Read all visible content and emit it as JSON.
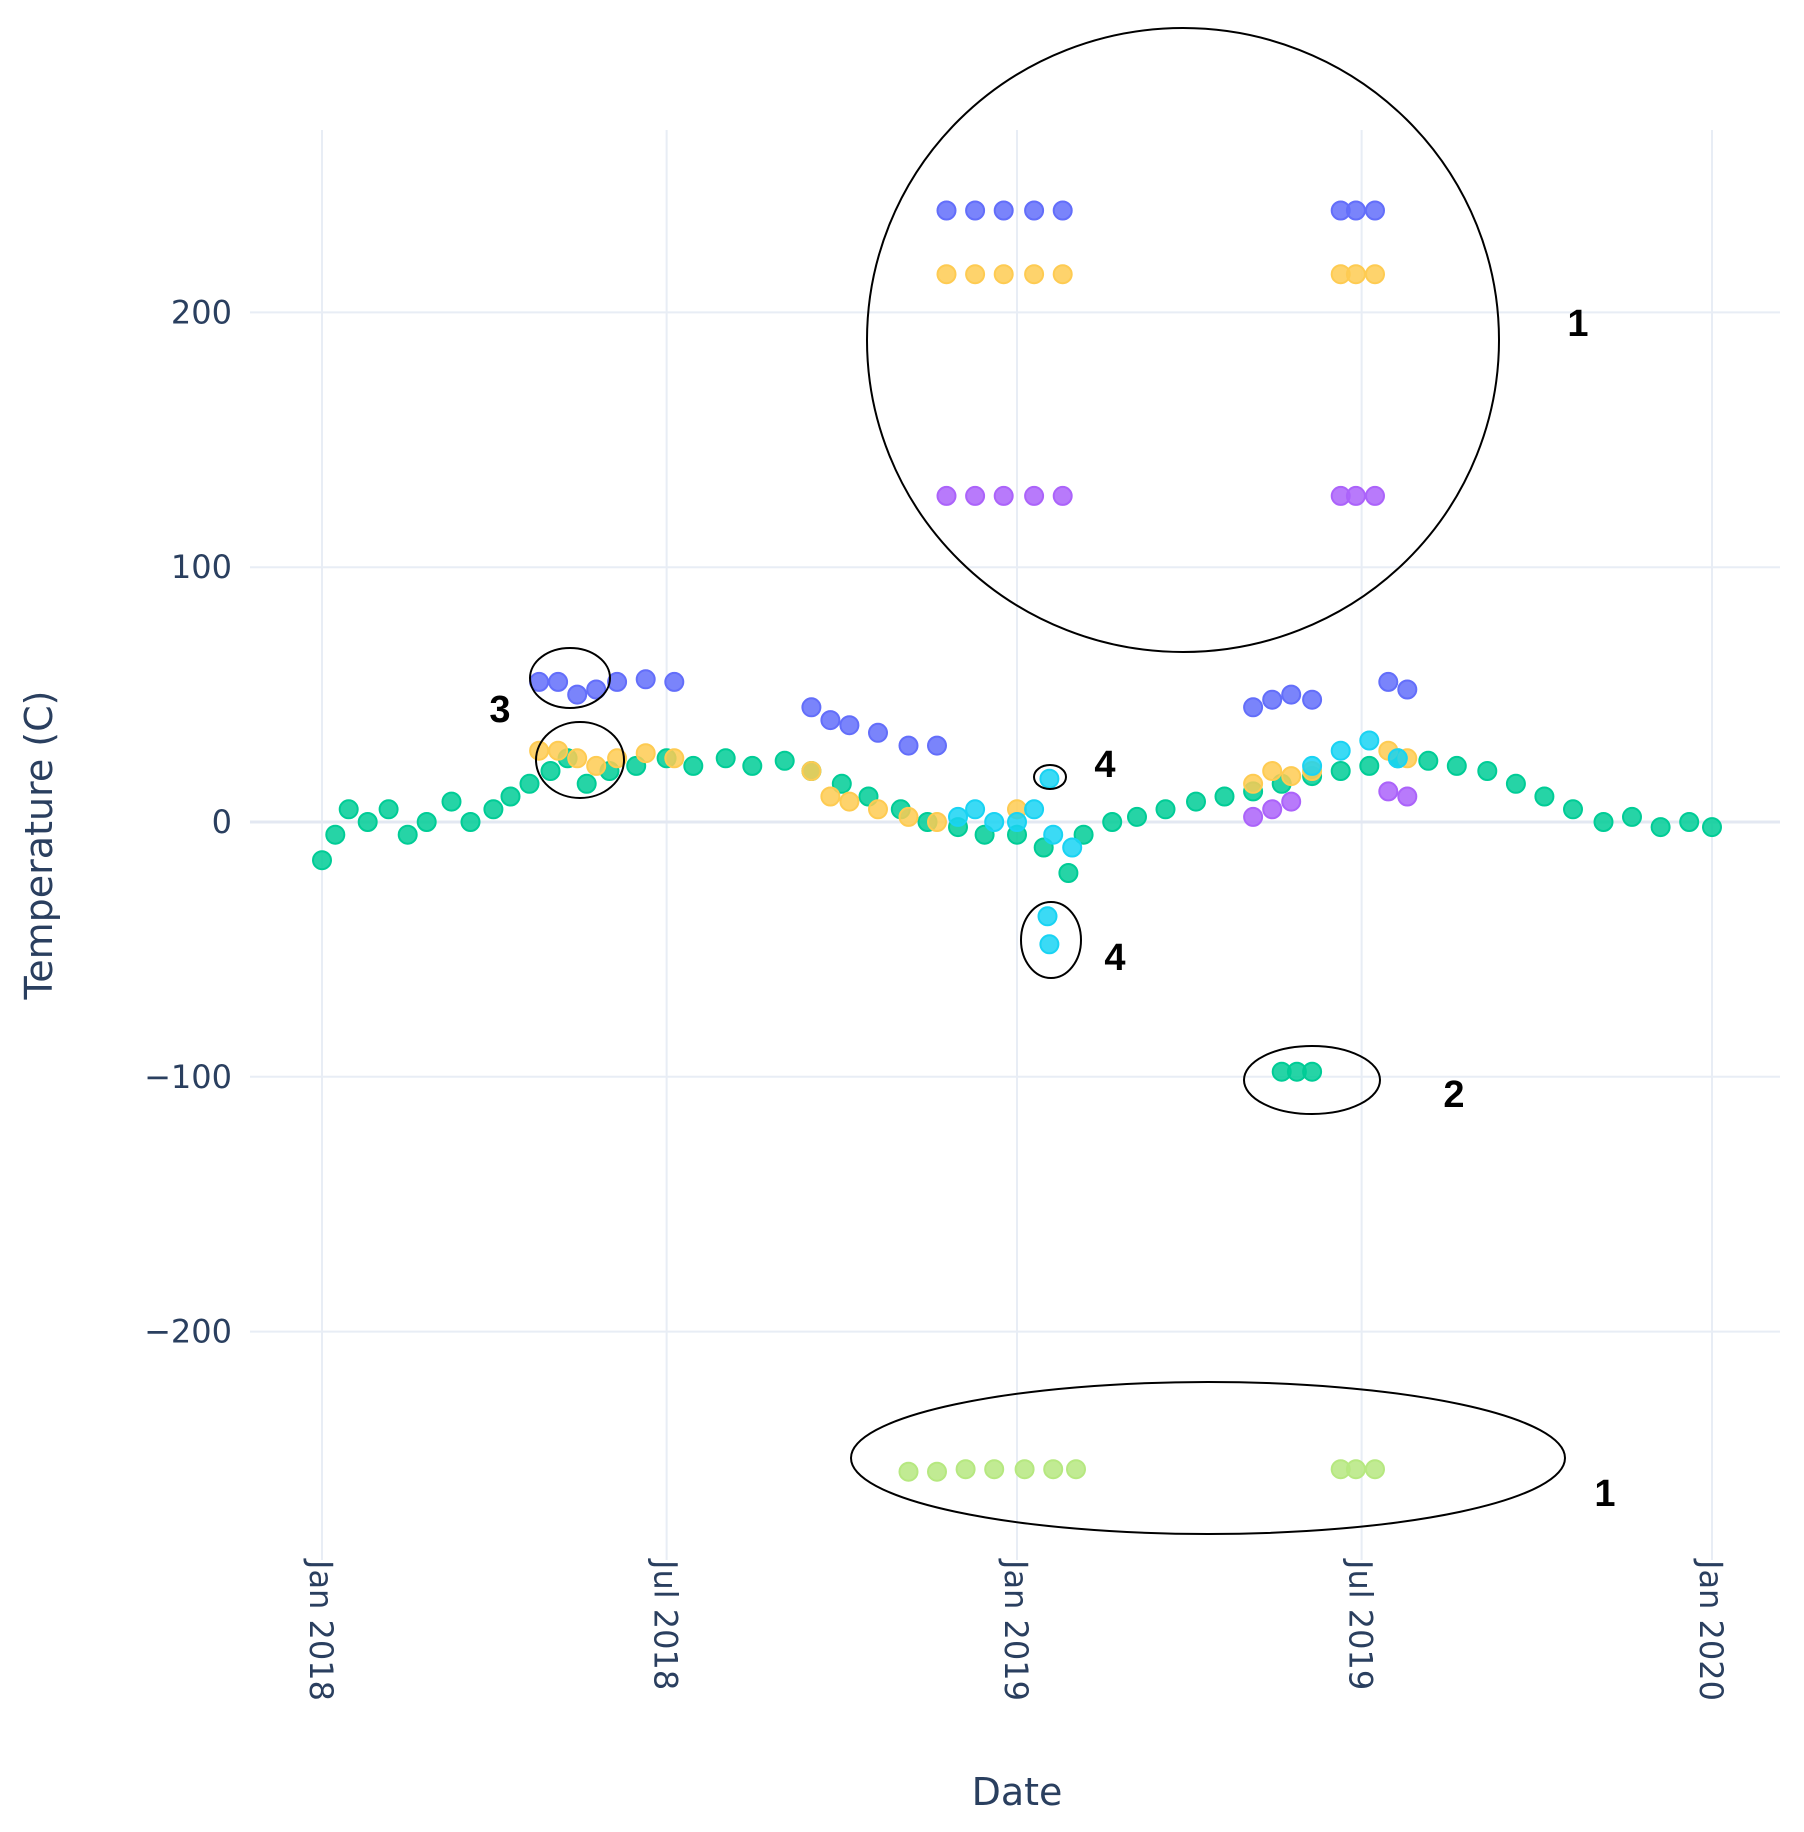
{
  "chart_data": {
    "type": "scatter",
    "title": "",
    "xlabel": "Date",
    "ylabel": "Temperature (C)",
    "xlim": [
      "2018-01-01",
      "2020-01-01"
    ],
    "ylim": [
      -280,
      280
    ],
    "y_ticks": [
      200,
      100,
      0,
      -100,
      -200
    ],
    "y_tick_labels": [
      "200",
      "100",
      "0",
      "−100",
      "−200"
    ],
    "x_ticks": [
      "2018-01-01",
      "2018-07-01",
      "2019-01-01",
      "2019-07-01",
      "2020-01-01"
    ],
    "x_tick_labels": [
      "Jan 2018",
      "Jul 2018",
      "Jan 2019",
      "Jul 2019",
      "Jan 2020"
    ],
    "grid": true,
    "colors": {
      "green": "#00cc96",
      "blue": "#636efa",
      "orange": "#fecb52",
      "cyan": "#19d3f3",
      "purple": "#ab63fa",
      "lightgreen": "#b6e880"
    },
    "series": [
      {
        "name": "green",
        "color_key": "green",
        "points": [
          [
            "2018-01-01",
            -15
          ],
          [
            "2018-01-08",
            -5
          ],
          [
            "2018-01-15",
            5
          ],
          [
            "2018-01-25",
            0
          ],
          [
            "2018-02-05",
            5
          ],
          [
            "2018-02-15",
            -5
          ],
          [
            "2018-02-25",
            0
          ],
          [
            "2018-03-10",
            8
          ],
          [
            "2018-03-20",
            0
          ],
          [
            "2018-04-01",
            5
          ],
          [
            "2018-04-10",
            10
          ],
          [
            "2018-04-20",
            15
          ],
          [
            "2018-05-01",
            20
          ],
          [
            "2018-05-10",
            25
          ],
          [
            "2018-05-20",
            15
          ],
          [
            "2018-06-01",
            20
          ],
          [
            "2018-06-15",
            22
          ],
          [
            "2018-07-01",
            25
          ],
          [
            "2018-07-15",
            22
          ],
          [
            "2018-08-01",
            25
          ],
          [
            "2018-08-15",
            22
          ],
          [
            "2018-09-01",
            24
          ],
          [
            "2018-09-15",
            20
          ],
          [
            "2018-10-01",
            15
          ],
          [
            "2018-10-15",
            10
          ],
          [
            "2018-11-01",
            5
          ],
          [
            "2018-11-15",
            0
          ],
          [
            "2018-12-01",
            -2
          ],
          [
            "2018-12-15",
            -5
          ],
          [
            "2019-01-01",
            -5
          ],
          [
            "2019-01-15",
            -10
          ],
          [
            "2019-01-28",
            -20
          ],
          [
            "2019-02-05",
            -5
          ],
          [
            "2019-02-20",
            0
          ],
          [
            "2019-03-05",
            2
          ],
          [
            "2019-03-20",
            5
          ],
          [
            "2019-04-05",
            8
          ],
          [
            "2019-04-20",
            10
          ],
          [
            "2019-05-05",
            12
          ],
          [
            "2019-05-20",
            15
          ],
          [
            "2019-06-05",
            18
          ],
          [
            "2019-06-20",
            20
          ],
          [
            "2019-07-05",
            22
          ],
          [
            "2019-07-20",
            25
          ],
          [
            "2019-08-05",
            24
          ],
          [
            "2019-08-20",
            22
          ],
          [
            "2019-09-05",
            20
          ],
          [
            "2019-09-20",
            15
          ],
          [
            "2019-10-05",
            10
          ],
          [
            "2019-10-20",
            5
          ],
          [
            "2019-11-05",
            0
          ],
          [
            "2019-11-20",
            2
          ],
          [
            "2019-12-05",
            -2
          ],
          [
            "2019-12-20",
            0
          ],
          [
            "2020-01-01",
            -2
          ]
        ]
      },
      {
        "name": "blue",
        "color_key": "blue",
        "points": [
          [
            "2018-04-25",
            55
          ],
          [
            "2018-05-05",
            55
          ],
          [
            "2018-05-15",
            50
          ],
          [
            "2018-05-25",
            52
          ],
          [
            "2018-06-05",
            55
          ],
          [
            "2018-06-20",
            56
          ],
          [
            "2018-07-05",
            55
          ],
          [
            "2018-09-15",
            45
          ],
          [
            "2018-09-25",
            40
          ],
          [
            "2018-10-05",
            38
          ],
          [
            "2018-10-20",
            35
          ],
          [
            "2018-11-05",
            30
          ],
          [
            "2018-11-20",
            30
          ],
          [
            "2019-05-05",
            45
          ],
          [
            "2019-05-15",
            48
          ],
          [
            "2019-05-25",
            50
          ],
          [
            "2019-06-05",
            48
          ],
          [
            "2019-07-15",
            55
          ],
          [
            "2019-07-25",
            52
          ],
          [
            "2019-06-20",
            240
          ],
          [
            "2019-06-28",
            240
          ],
          [
            "2019-07-08",
            240
          ],
          [
            "2018-11-25",
            240
          ],
          [
            "2018-12-10",
            240
          ],
          [
            "2018-12-25",
            240
          ],
          [
            "2019-01-10",
            240
          ],
          [
            "2019-01-25",
            240
          ]
        ]
      },
      {
        "name": "orange",
        "color_key": "orange",
        "points": [
          [
            "2018-04-25",
            28
          ],
          [
            "2018-05-05",
            28
          ],
          [
            "2018-05-15",
            25
          ],
          [
            "2018-05-25",
            22
          ],
          [
            "2018-06-05",
            25
          ],
          [
            "2018-06-20",
            27
          ],
          [
            "2018-07-05",
            25
          ],
          [
            "2018-09-15",
            20
          ],
          [
            "2018-09-25",
            10
          ],
          [
            "2018-10-05",
            8
          ],
          [
            "2018-10-20",
            5
          ],
          [
            "2018-11-05",
            2
          ],
          [
            "2018-11-20",
            0
          ],
          [
            "2019-01-01",
            5
          ],
          [
            "2019-05-05",
            15
          ],
          [
            "2019-05-15",
            20
          ],
          [
            "2019-05-25",
            18
          ],
          [
            "2019-06-05",
            20
          ],
          [
            "2019-07-15",
            28
          ],
          [
            "2019-07-25",
            25
          ],
          [
            "2019-06-20",
            215
          ],
          [
            "2019-06-28",
            215
          ],
          [
            "2019-07-08",
            215
          ],
          [
            "2018-11-25",
            215
          ],
          [
            "2018-12-10",
            215
          ],
          [
            "2018-12-25",
            215
          ],
          [
            "2019-01-10",
            215
          ],
          [
            "2019-01-25",
            215
          ]
        ]
      },
      {
        "name": "cyan",
        "color_key": "cyan",
        "points": [
          [
            "2018-12-01",
            2
          ],
          [
            "2018-12-10",
            5
          ],
          [
            "2018-12-20",
            0
          ],
          [
            "2019-01-01",
            0
          ],
          [
            "2019-01-10",
            5
          ],
          [
            "2019-01-20",
            -5
          ],
          [
            "2019-01-30",
            -10
          ],
          [
            "2019-01-18",
            17
          ],
          [
            "2019-01-17",
            -37
          ],
          [
            "2019-01-18",
            -48
          ],
          [
            "2019-06-05",
            22
          ],
          [
            "2019-06-20",
            28
          ],
          [
            "2019-07-05",
            32
          ],
          [
            "2019-07-20",
            25
          ]
        ]
      },
      {
        "name": "purple",
        "color_key": "purple",
        "points": [
          [
            "2019-05-05",
            2
          ],
          [
            "2019-05-15",
            5
          ],
          [
            "2019-05-25",
            8
          ],
          [
            "2019-07-15",
            12
          ],
          [
            "2019-07-25",
            10
          ],
          [
            "2018-11-25",
            128
          ],
          [
            "2018-12-10",
            128
          ],
          [
            "2018-12-25",
            128
          ],
          [
            "2019-01-10",
            128
          ],
          [
            "2019-01-25",
            128
          ],
          [
            "2019-06-20",
            128
          ],
          [
            "2019-06-28",
            128
          ],
          [
            "2019-07-08",
            128
          ]
        ]
      },
      {
        "name": "green outlier",
        "color_key": "green",
        "points": [
          [
            "2019-05-20",
            -98
          ],
          [
            "2019-05-28",
            -98
          ],
          [
            "2019-06-05",
            -98
          ]
        ]
      },
      {
        "name": "lightgreen",
        "color_key": "lightgreen",
        "points": [
          [
            "2018-11-05",
            -255
          ],
          [
            "2018-11-20",
            -255
          ],
          [
            "2018-12-05",
            -254
          ],
          [
            "2018-12-20",
            -254
          ],
          [
            "2019-01-05",
            -254
          ],
          [
            "2019-01-20",
            -254
          ],
          [
            "2019-02-01",
            -254
          ],
          [
            "2019-06-20",
            -254
          ],
          [
            "2019-06-28",
            -254
          ],
          [
            "2019-07-08",
            -254
          ]
        ]
      }
    ],
    "annotations": [
      {
        "label": "1",
        "shape": "ellipse"
      },
      {
        "label": "1",
        "shape": "ellipse"
      },
      {
        "label": "2",
        "shape": "ellipse"
      },
      {
        "label": "3",
        "shape": "ellipse"
      },
      {
        "label": "4",
        "shape": "ellipse"
      },
      {
        "label": "4",
        "shape": "ellipse"
      }
    ]
  }
}
